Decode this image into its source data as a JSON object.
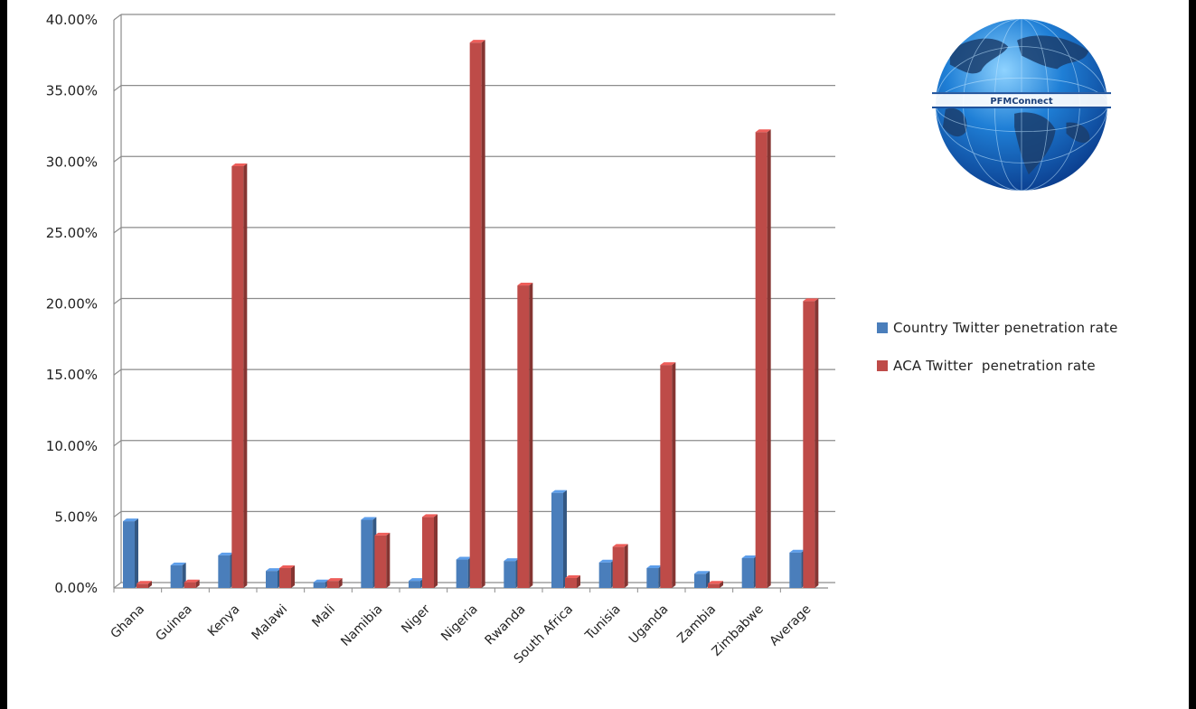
{
  "chart_data": {
    "type": "bar",
    "title": "",
    "xlabel": "",
    "ylabel": "",
    "ylim": [
      0,
      40
    ],
    "y_tick_step": 5,
    "y_tick_labels": [
      "0.00%",
      "5.00%",
      "10.00%",
      "15.00%",
      "20.00%",
      "25.00%",
      "30.00%",
      "35.00%",
      "40.00%"
    ],
    "grid": true,
    "legend_position": "right",
    "categories": [
      "Ghana",
      "Guinea",
      "Kenya",
      "Malawi",
      "Mali",
      "Namibia",
      "Niger",
      "Nigeria",
      "Rwanda",
      "South Africa",
      "Tunisia",
      "Uganda",
      "Zambia",
      "Zimbabwe",
      "Average"
    ],
    "series": [
      {
        "name": "Country Twitter penetration rate",
        "color": "#4a7ebb",
        "values": [
          4.7,
          1.6,
          2.3,
          1.2,
          0.4,
          4.8,
          0.5,
          2.0,
          1.9,
          6.7,
          1.8,
          1.4,
          1.0,
          2.1,
          2.5
        ]
      },
      {
        "name": "ACA Twitter  penetration rate",
        "color": "#be4b48",
        "values": [
          0.3,
          0.4,
          29.7,
          1.4,
          0.5,
          3.7,
          5.0,
          38.4,
          21.3,
          0.7,
          2.9,
          15.7,
          0.3,
          32.1,
          20.2
        ]
      }
    ]
  },
  "logo": {
    "text": "PFMConnect"
  }
}
